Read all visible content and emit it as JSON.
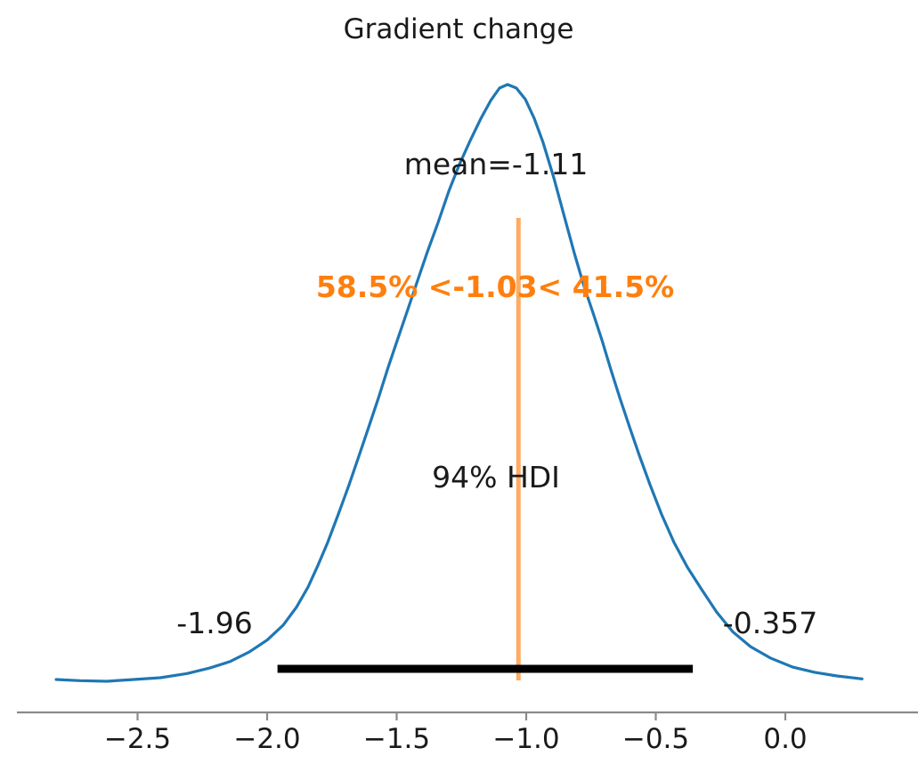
{
  "title": "Gradient change",
  "colors": {
    "curve": "#1f77b4",
    "accent": "#ff7f0e",
    "hdi_bar": "#000000",
    "axis": "#8a8a8a",
    "text": "#1a1a1a"
  },
  "annotations": {
    "mean_label": "mean=-1.11",
    "ref_val_label": "58.5% <-1.03< 41.5%",
    "hdi_label": "94% HDI",
    "hdi_lower": "-1.96",
    "hdi_upper": "-0.357"
  },
  "x_axis": {
    "tick_labels": [
      "−2.5",
      "−2.0",
      "−1.5",
      "−1.0",
      "−0.5",
      "0.0"
    ],
    "tick_values": [
      -2.5,
      -2.0,
      -1.5,
      -1.0,
      -0.5,
      0.0
    ]
  },
  "chart_data": {
    "type": "line",
    "title": "Gradient change",
    "xlabel": "",
    "ylabel": "",
    "legend": "none",
    "grid": false,
    "x_range": [
      -2.82,
      0.3
    ],
    "mean": -1.11,
    "ref_value": -1.03,
    "pct_below_ref": 58.5,
    "pct_above_ref": 41.5,
    "hdi_probability": 0.94,
    "hdi_interval": [
      -1.96,
      -0.357
    ],
    "x_ticks": [
      -2.5,
      -2.0,
      -1.5,
      -1.0,
      -0.5,
      0.0
    ],
    "density": {
      "x": [
        -2.814,
        -2.722,
        -2.619,
        -2.515,
        -2.412,
        -2.309,
        -2.223,
        -2.144,
        -2.069,
        -2.0,
        -1.938,
        -1.887,
        -1.842,
        -1.804,
        -1.766,
        -1.725,
        -1.684,
        -1.646,
        -1.608,
        -1.57,
        -1.533,
        -1.495,
        -1.457,
        -1.419,
        -1.381,
        -1.34,
        -1.299,
        -1.258,
        -1.216,
        -1.175,
        -1.137,
        -1.103,
        -1.072,
        -1.038,
        -1.003,
        -0.969,
        -0.935,
        -0.893,
        -0.852,
        -0.814,
        -0.777,
        -0.742,
        -0.708,
        -0.674,
        -0.639,
        -0.601,
        -0.564,
        -0.522,
        -0.478,
        -0.43,
        -0.378,
        -0.323,
        -0.265,
        -0.203,
        -0.134,
        -0.058,
        0.027,
        0.113,
        0.199,
        0.296
      ],
      "y_normalized": [
        0.003,
        0.001,
        0.0,
        0.003,
        0.006,
        0.013,
        0.022,
        0.033,
        0.049,
        0.069,
        0.094,
        0.124,
        0.158,
        0.194,
        0.233,
        0.28,
        0.329,
        0.377,
        0.426,
        0.475,
        0.526,
        0.575,
        0.623,
        0.672,
        0.72,
        0.769,
        0.821,
        0.866,
        0.906,
        0.943,
        0.973,
        0.994,
        1.0,
        0.994,
        0.975,
        0.943,
        0.903,
        0.843,
        0.777,
        0.717,
        0.662,
        0.617,
        0.572,
        0.523,
        0.475,
        0.426,
        0.379,
        0.329,
        0.28,
        0.233,
        0.191,
        0.154,
        0.116,
        0.083,
        0.058,
        0.039,
        0.024,
        0.015,
        0.009,
        0.004
      ]
    }
  }
}
